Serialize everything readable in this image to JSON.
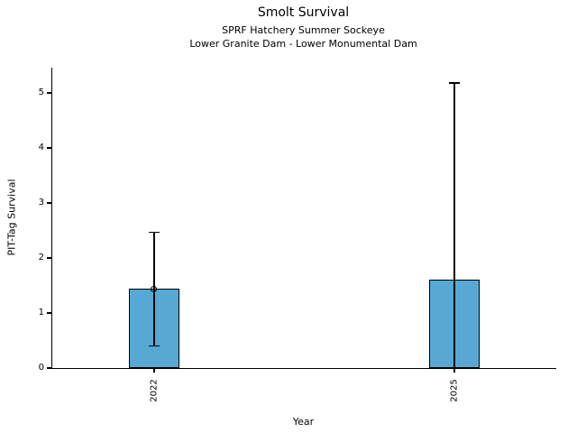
{
  "chart_data": {
    "type": "bar",
    "title": "Smolt Survival",
    "subtitle1": "SPRF Hatchery Summer Sockeye",
    "subtitle2": "Lower Granite Dam - Lower Monumental Dam",
    "xlabel": "Year",
    "ylabel": "PIT-Tag Survival",
    "categories": [
      "2022",
      "2025"
    ],
    "values": [
      1.44,
      1.61
    ],
    "error_low": [
      0.4,
      0.0
    ],
    "error_high": [
      2.47,
      5.18
    ],
    "markers": [
      true,
      false
    ],
    "ylim": [
      0,
      5.46
    ],
    "yticks": [
      0,
      1,
      2,
      3,
      4,
      5
    ],
    "x_positions": [
      0.202,
      0.798
    ],
    "bar_color": "#57a9d4",
    "edge_color": "#000000",
    "grid": false,
    "legend_position": "none"
  }
}
